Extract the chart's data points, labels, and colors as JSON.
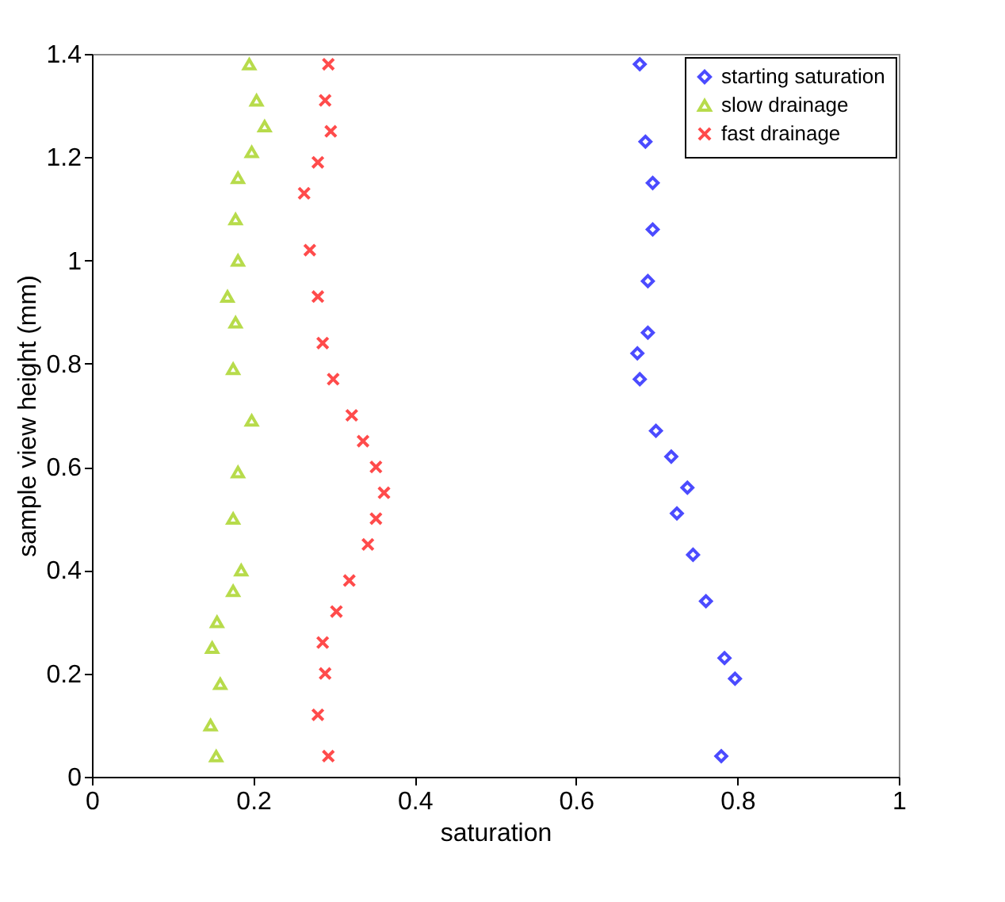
{
  "chart_data": {
    "type": "scatter",
    "xlabel": "saturation",
    "ylabel": "sample view height (mm)",
    "xlim": [
      0,
      1
    ],
    "xticks": [
      0,
      0.2,
      0.4,
      0.6,
      0.8,
      1
    ],
    "ylim": [
      0,
      1.4
    ],
    "yticks": [
      0,
      0.2,
      0.4,
      0.6,
      0.8,
      1,
      1.2,
      1.4
    ],
    "grid": false,
    "legend": "top right",
    "series": [
      {
        "name": "starting saturation",
        "color": "#0000ff",
        "marker": "diamond",
        "x": [
          0.78,
          0.797,
          0.784,
          0.761,
          0.745,
          0.725,
          0.738,
          0.718,
          0.699,
          0.679,
          0.676,
          0.689,
          0.689,
          0.695,
          0.695,
          0.686,
          0.679
        ],
        "values": [
          0.04,
          0.19,
          0.23,
          0.34,
          0.43,
          0.51,
          0.56,
          0.62,
          0.67,
          0.77,
          0.82,
          0.86,
          0.96,
          1.06,
          1.15,
          1.23,
          1.38
        ]
      },
      {
        "name": "slow drainage",
        "color": "#99cc00",
        "marker": "triangle",
        "x": [
          0.154,
          0.147,
          0.159,
          0.149,
          0.155,
          0.175,
          0.185,
          0.175,
          0.181,
          0.198,
          0.175,
          0.178,
          0.168,
          0.181,
          0.178,
          0.181,
          0.198,
          0.214,
          0.204,
          0.195
        ],
        "values": [
          0.04,
          0.1,
          0.18,
          0.25,
          0.3,
          0.36,
          0.4,
          0.5,
          0.59,
          0.69,
          0.79,
          0.88,
          0.93,
          1.0,
          1.08,
          1.16,
          1.21,
          1.26,
          1.31,
          1.38
        ]
      },
      {
        "name": "fast drainage",
        "color": "#ff0000",
        "marker": "cross",
        "x": [
          0.293,
          0.28,
          0.289,
          0.286,
          0.303,
          0.319,
          0.342,
          0.352,
          0.362,
          0.352,
          0.336,
          0.322,
          0.299,
          0.286,
          0.28,
          0.27,
          0.263,
          0.28,
          0.296,
          0.289,
          0.293
        ],
        "values": [
          0.04,
          0.12,
          0.2,
          0.26,
          0.32,
          0.38,
          0.45,
          0.5,
          0.55,
          0.6,
          0.65,
          0.7,
          0.77,
          0.84,
          0.93,
          1.02,
          1.13,
          1.19,
          1.25,
          1.31,
          1.38
        ]
      }
    ]
  }
}
